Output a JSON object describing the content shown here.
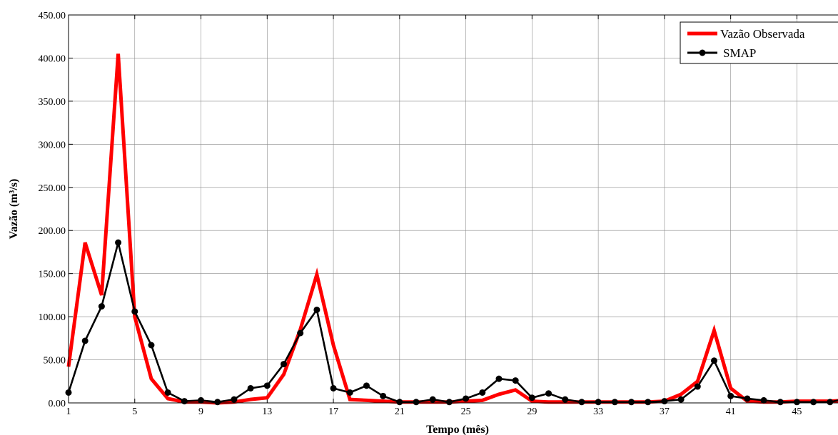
{
  "chart_data": {
    "type": "line",
    "title": "",
    "xlabel": "Tempo (mês)",
    "ylabel": "Vazão (m³/s)",
    "xlim": [
      1,
      48
    ],
    "ylim": [
      0,
      450
    ],
    "x_ticks": [
      1,
      5,
      9,
      13,
      17,
      21,
      25,
      29,
      33,
      37,
      41,
      45
    ],
    "y_ticks": [
      0,
      50,
      100,
      150,
      200,
      250,
      300,
      350,
      400,
      450
    ],
    "y_tick_labels": [
      "0.00",
      "50.00",
      "100.00",
      "150.00",
      "200.00",
      "250.00",
      "300.00",
      "350.00",
      "400.00",
      "450.00"
    ],
    "grid": true,
    "legend_position": "top-right",
    "x": [
      1,
      2,
      3,
      4,
      5,
      6,
      7,
      8,
      9,
      10,
      11,
      12,
      13,
      14,
      15,
      16,
      17,
      18,
      19,
      20,
      21,
      22,
      23,
      24,
      25,
      26,
      27,
      28,
      29,
      30,
      31,
      32,
      33,
      34,
      35,
      36,
      37,
      38,
      39,
      40,
      41,
      42,
      43,
      44,
      45,
      46,
      47,
      48
    ],
    "series": [
      {
        "name": "Vazão Observada",
        "color": "#ff0000",
        "marker": "none",
        "values": [
          42,
          186,
          125,
          405,
          100,
          28,
          5,
          1,
          1,
          0,
          1,
          4,
          6,
          33,
          85,
          149,
          67,
          4,
          3,
          2,
          1,
          1,
          1,
          1,
          2,
          3,
          10,
          15,
          2,
          1,
          1,
          1,
          1,
          1,
          1,
          1,
          2,
          10,
          25,
          84,
          17,
          2,
          1,
          1,
          2,
          2,
          2,
          3
        ]
      },
      {
        "name": "SMAP",
        "color": "#000000",
        "marker": "circle",
        "values": [
          12,
          72,
          112,
          186,
          106,
          67,
          12,
          2,
          3,
          1,
          4,
          17,
          20,
          45,
          81,
          108,
          17,
          12,
          20,
          8,
          1,
          1,
          4,
          1,
          5,
          12,
          28,
          26,
          6,
          11,
          4,
          1,
          1,
          1,
          1,
          1,
          2,
          4,
          19,
          49,
          8,
          5,
          3,
          1,
          1,
          1,
          1,
          5
        ]
      }
    ]
  }
}
